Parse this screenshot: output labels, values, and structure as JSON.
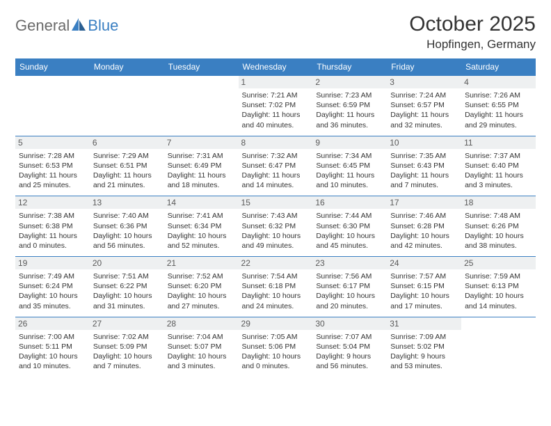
{
  "logo": {
    "part1": "General",
    "part2": "Blue"
  },
  "title": "October 2025",
  "location": "Hopfingen, Germany",
  "colors": {
    "header_bg": "#3a7fc2",
    "header_text": "#ffffff",
    "border": "#3a7fc2",
    "daynum_bg": "#eef0f1",
    "text": "#333333",
    "logo_gray": "#6b6b6b",
    "logo_blue": "#3a7fc2"
  },
  "weekdays": [
    "Sunday",
    "Monday",
    "Tuesday",
    "Wednesday",
    "Thursday",
    "Friday",
    "Saturday"
  ],
  "weeks": [
    [
      {
        "empty": true
      },
      {
        "empty": true
      },
      {
        "empty": true
      },
      {
        "num": "1",
        "sunrise": "7:21 AM",
        "sunset": "7:02 PM",
        "daylight": "11 hours and 40 minutes."
      },
      {
        "num": "2",
        "sunrise": "7:23 AM",
        "sunset": "6:59 PM",
        "daylight": "11 hours and 36 minutes."
      },
      {
        "num": "3",
        "sunrise": "7:24 AM",
        "sunset": "6:57 PM",
        "daylight": "11 hours and 32 minutes."
      },
      {
        "num": "4",
        "sunrise": "7:26 AM",
        "sunset": "6:55 PM",
        "daylight": "11 hours and 29 minutes."
      }
    ],
    [
      {
        "num": "5",
        "sunrise": "7:28 AM",
        "sunset": "6:53 PM",
        "daylight": "11 hours and 25 minutes."
      },
      {
        "num": "6",
        "sunrise": "7:29 AM",
        "sunset": "6:51 PM",
        "daylight": "11 hours and 21 minutes."
      },
      {
        "num": "7",
        "sunrise": "7:31 AM",
        "sunset": "6:49 PM",
        "daylight": "11 hours and 18 minutes."
      },
      {
        "num": "8",
        "sunrise": "7:32 AM",
        "sunset": "6:47 PM",
        "daylight": "11 hours and 14 minutes."
      },
      {
        "num": "9",
        "sunrise": "7:34 AM",
        "sunset": "6:45 PM",
        "daylight": "11 hours and 10 minutes."
      },
      {
        "num": "10",
        "sunrise": "7:35 AM",
        "sunset": "6:43 PM",
        "daylight": "11 hours and 7 minutes."
      },
      {
        "num": "11",
        "sunrise": "7:37 AM",
        "sunset": "6:40 PM",
        "daylight": "11 hours and 3 minutes."
      }
    ],
    [
      {
        "num": "12",
        "sunrise": "7:38 AM",
        "sunset": "6:38 PM",
        "daylight": "11 hours and 0 minutes."
      },
      {
        "num": "13",
        "sunrise": "7:40 AM",
        "sunset": "6:36 PM",
        "daylight": "10 hours and 56 minutes."
      },
      {
        "num": "14",
        "sunrise": "7:41 AM",
        "sunset": "6:34 PM",
        "daylight": "10 hours and 52 minutes."
      },
      {
        "num": "15",
        "sunrise": "7:43 AM",
        "sunset": "6:32 PM",
        "daylight": "10 hours and 49 minutes."
      },
      {
        "num": "16",
        "sunrise": "7:44 AM",
        "sunset": "6:30 PM",
        "daylight": "10 hours and 45 minutes."
      },
      {
        "num": "17",
        "sunrise": "7:46 AM",
        "sunset": "6:28 PM",
        "daylight": "10 hours and 42 minutes."
      },
      {
        "num": "18",
        "sunrise": "7:48 AM",
        "sunset": "6:26 PM",
        "daylight": "10 hours and 38 minutes."
      }
    ],
    [
      {
        "num": "19",
        "sunrise": "7:49 AM",
        "sunset": "6:24 PM",
        "daylight": "10 hours and 35 minutes."
      },
      {
        "num": "20",
        "sunrise": "7:51 AM",
        "sunset": "6:22 PM",
        "daylight": "10 hours and 31 minutes."
      },
      {
        "num": "21",
        "sunrise": "7:52 AM",
        "sunset": "6:20 PM",
        "daylight": "10 hours and 27 minutes."
      },
      {
        "num": "22",
        "sunrise": "7:54 AM",
        "sunset": "6:18 PM",
        "daylight": "10 hours and 24 minutes."
      },
      {
        "num": "23",
        "sunrise": "7:56 AM",
        "sunset": "6:17 PM",
        "daylight": "10 hours and 20 minutes."
      },
      {
        "num": "24",
        "sunrise": "7:57 AM",
        "sunset": "6:15 PM",
        "daylight": "10 hours and 17 minutes."
      },
      {
        "num": "25",
        "sunrise": "7:59 AM",
        "sunset": "6:13 PM",
        "daylight": "10 hours and 14 minutes."
      }
    ],
    [
      {
        "num": "26",
        "sunrise": "7:00 AM",
        "sunset": "5:11 PM",
        "daylight": "10 hours and 10 minutes."
      },
      {
        "num": "27",
        "sunrise": "7:02 AM",
        "sunset": "5:09 PM",
        "daylight": "10 hours and 7 minutes."
      },
      {
        "num": "28",
        "sunrise": "7:04 AM",
        "sunset": "5:07 PM",
        "daylight": "10 hours and 3 minutes."
      },
      {
        "num": "29",
        "sunrise": "7:05 AM",
        "sunset": "5:06 PM",
        "daylight": "10 hours and 0 minutes."
      },
      {
        "num": "30",
        "sunrise": "7:07 AM",
        "sunset": "5:04 PM",
        "daylight": "9 hours and 56 minutes."
      },
      {
        "num": "31",
        "sunrise": "7:09 AM",
        "sunset": "5:02 PM",
        "daylight": "9 hours and 53 minutes."
      },
      {
        "empty": true
      }
    ]
  ]
}
